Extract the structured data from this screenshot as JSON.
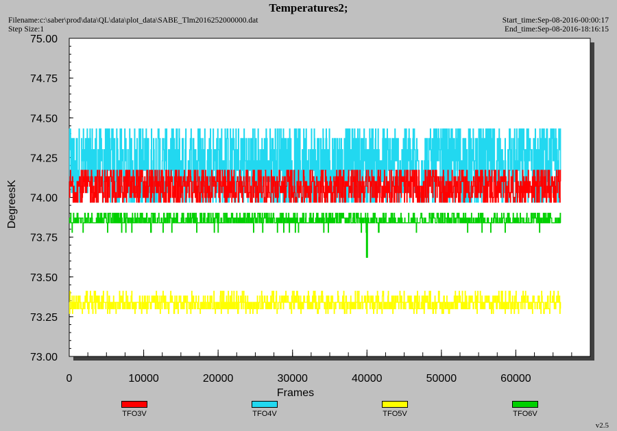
{
  "header": {
    "title": "Temperatures2;",
    "filename": "Filename:c:\\saber\\prod\\data\\QL\\data\\plot_data\\SABE_Tlm2016252000000.dat",
    "step_size": "Step Size:1",
    "start_time": "Start_time:Sep-08-2016-00:00:17",
    "end_time": "End_time:Sep-08-2016-18:16:15"
  },
  "version": "v2.5",
  "chart_data": {
    "type": "line",
    "title": "Temperatures2;",
    "xlabel": "Frames",
    "ylabel": "DegreesK",
    "xlim": [
      0,
      70000
    ],
    "ylim": [
      73.0,
      75.0
    ],
    "x_ticks": [
      "0",
      "10000",
      "20000",
      "30000",
      "40000",
      "50000",
      "60000"
    ],
    "y_ticks": [
      "73.00",
      "73.25",
      "73.50",
      "73.75",
      "74.00",
      "74.25",
      "74.50",
      "74.75",
      "75.00"
    ],
    "grid": false,
    "legend_position": "bottom",
    "series": [
      {
        "name": "TFO3V",
        "color": "#ff0000",
        "x_range": [
          0,
          66000
        ],
        "baseline": 74.0,
        "values": [
          73.97,
          74.0,
          74.03,
          74.07,
          74.1,
          74.13,
          74.17
        ]
      },
      {
        "name": "TFO4V",
        "color": "#22d8f0",
        "x_range": [
          0,
          66000
        ],
        "baseline": 74.2,
        "values": [
          73.9,
          73.97,
          74.03,
          74.1,
          74.17,
          74.23,
          74.3,
          74.37,
          74.43,
          74.47,
          74.53
        ]
      },
      {
        "name": "TFO5V",
        "color": "#ffff00",
        "x_range": [
          0,
          66000
        ],
        "baseline": 73.34,
        "values": [
          73.27,
          73.3,
          73.34,
          73.38,
          73.41
        ]
      },
      {
        "name": "TFO6V",
        "color": "#00d000",
        "x_range": [
          0,
          66000
        ],
        "baseline": 73.84,
        "values": [
          73.76,
          73.82,
          73.84,
          73.87,
          73.9,
          73.62
        ]
      }
    ]
  }
}
